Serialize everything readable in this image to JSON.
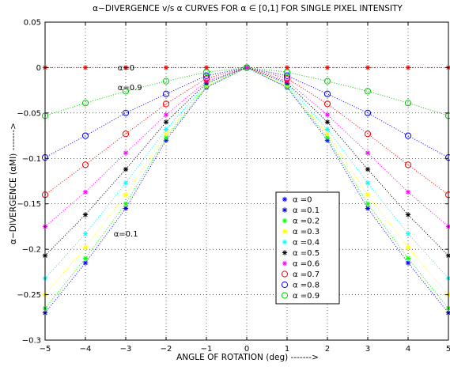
{
  "chart_data": {
    "type": "line",
    "title": "α−DIVERGENCE v/s α CURVES FOR α ∈ [0,1] FOR  SINGLE PIXEL INTENSITY",
    "xlabel": "ANGLE OF ROTATION (deg) ------->",
    "ylabel": "α−DIVERGENCE (αMI)  ------->",
    "xlim": [
      -5,
      5
    ],
    "ylim": [
      -0.3,
      0.05
    ],
    "xticks": [
      "−5",
      "−4",
      "−3",
      "−2",
      "−1",
      "0",
      "1",
      "2",
      "3",
      "4",
      "5"
    ],
    "yticks": [
      "0.05",
      "0",
      "−0.05",
      "−0.1",
      "−0.15",
      "−0.2",
      "−0.25",
      "−0.3"
    ],
    "grid": true,
    "legend_position": "lower-center-right",
    "x": [
      -5,
      -4,
      -3,
      -2,
      -1,
      0,
      1,
      2,
      3,
      4,
      5
    ],
    "series": [
      {
        "name": "α =0",
        "marker": "star",
        "color": "#0000ff",
        "values": [
          0,
          0,
          0,
          0,
          0,
          0,
          0,
          0,
          0,
          0,
          0
        ]
      },
      {
        "name": "α =0.1",
        "marker": "star",
        "color": "#0000ff",
        "values": [
          -0.27,
          -0.215,
          -0.155,
          -0.08,
          -0.022,
          0,
          -0.022,
          -0.08,
          -0.155,
          -0.215,
          -0.27
        ]
      },
      {
        "name": "α =0.2",
        "marker": "star",
        "color": "#00ff00",
        "values": [
          -0.265,
          -0.21,
          -0.15,
          -0.077,
          -0.021,
          0,
          -0.021,
          -0.077,
          -0.15,
          -0.21,
          -0.265
        ]
      },
      {
        "name": "α =0.3",
        "marker": "star",
        "color": "#ffff00",
        "values": [
          -0.25,
          -0.198,
          -0.14,
          -0.073,
          -0.02,
          0,
          -0.02,
          -0.073,
          -0.14,
          -0.198,
          -0.25
        ]
      },
      {
        "name": "α =0.4",
        "marker": "star",
        "color": "#00ffff",
        "values": [
          -0.232,
          -0.183,
          -0.127,
          -0.068,
          -0.018,
          0,
          -0.018,
          -0.068,
          -0.127,
          -0.183,
          -0.232
        ]
      },
      {
        "name": "α =0.5",
        "marker": "star",
        "color": "#000000",
        "values": [
          -0.207,
          -0.162,
          -0.112,
          -0.06,
          -0.017,
          0,
          -0.017,
          -0.06,
          -0.112,
          -0.162,
          -0.207
        ]
      },
      {
        "name": "α =0.6",
        "marker": "star",
        "color": "#ff00ff",
        "values": [
          -0.175,
          -0.137,
          -0.094,
          -0.052,
          -0.015,
          0,
          -0.015,
          -0.052,
          -0.094,
          -0.137,
          -0.175
        ]
      },
      {
        "name": "α =0.7",
        "marker": "circle",
        "color": "#ff0000",
        "values": [
          -0.14,
          -0.107,
          -0.073,
          -0.04,
          -0.012,
          0,
          -0.012,
          -0.04,
          -0.073,
          -0.107,
          -0.14
        ]
      },
      {
        "name": "α =0.8",
        "marker": "circle",
        "color": "#0000ff",
        "values": [
          -0.099,
          -0.075,
          -0.05,
          -0.029,
          -0.009,
          0,
          -0.009,
          -0.029,
          -0.05,
          -0.075,
          -0.099
        ]
      },
      {
        "name": "α =0.9",
        "marker": "circle",
        "color": "#00cc00",
        "values": [
          -0.053,
          -0.039,
          -0.026,
          -0.015,
          -0.005,
          0,
          -0.005,
          -0.015,
          -0.026,
          -0.039,
          -0.053
        ]
      }
    ],
    "zero_series_color": "#ff0000",
    "annotations": [
      {
        "text": "α=0",
        "x": -3.2,
        "y": 0.0
      },
      {
        "text": "α=0.9",
        "x": -3.2,
        "y": -0.022
      },
      {
        "text": "α=0.1",
        "x": -3.3,
        "y": -0.183
      }
    ]
  }
}
